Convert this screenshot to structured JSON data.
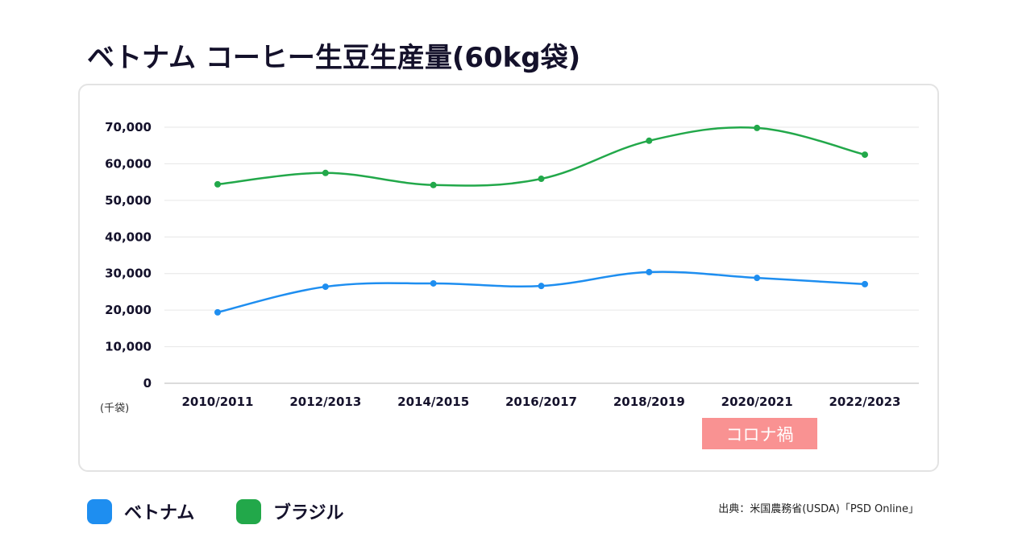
{
  "title": "ベトナム コーヒー生豆生産量(60kg袋)",
  "unit_label": "(千袋)",
  "annotation": "コロナ禍",
  "source": "出典：米国農務省(USDA)「PSD Online」",
  "colors": {
    "vietnam": "#1e8ef0",
    "brazil": "#22a84a",
    "annotation_bg": "#f99292",
    "grid": "#e6e6e6",
    "text": "#14112b"
  },
  "legend": [
    {
      "label": "ベトナム",
      "color": "#1e8ef0"
    },
    {
      "label": "ブラジル",
      "color": "#22a84a"
    }
  ],
  "chart_data": {
    "type": "line",
    "title": "ベトナム コーヒー生豆生産量(60kg袋)",
    "xlabel": "",
    "ylabel": "(千袋)",
    "categories": [
      "2010/2011",
      "2012/2013",
      "2014/2015",
      "2016/2017",
      "2018/2019",
      "2020/2021",
      "2022/2023"
    ],
    "y_ticks": [
      0,
      10000,
      20000,
      30000,
      40000,
      50000,
      60000,
      70000
    ],
    "y_tick_labels": [
      "0",
      "10,000",
      "20,000",
      "30,000",
      "40,000",
      "50,000",
      "60,000",
      "70,000"
    ],
    "ylim": [
      0,
      70000
    ],
    "grid": true,
    "legend_position": "bottom-left",
    "series": [
      {
        "name": "ベトナム",
        "color": "#1e8ef0",
        "values": [
          19400,
          26400,
          27300,
          26600,
          30400,
          28800,
          27100
        ]
      },
      {
        "name": "ブラジル",
        "color": "#22a84a",
        "values": [
          54400,
          57500,
          54200,
          55900,
          66300,
          69800,
          62500
        ]
      }
    ],
    "annotations": [
      {
        "text": "コロナ禍",
        "category": "2020/2021"
      }
    ]
  }
}
